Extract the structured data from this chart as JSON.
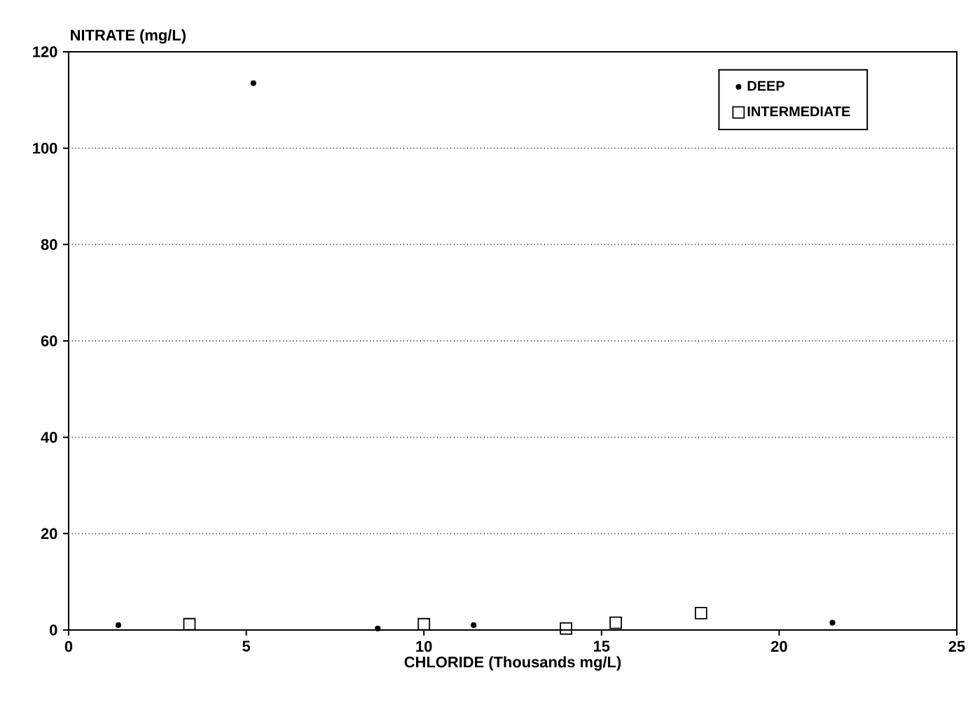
{
  "chart_data": {
    "type": "scatter",
    "xlabel": "CHLORIDE (Thousands mg/L)",
    "ylabel": "NITRATE (mg/L)",
    "xlim": [
      0,
      25
    ],
    "xticks": [
      0,
      5,
      10,
      15,
      20,
      25
    ],
    "ylim": [
      0,
      120
    ],
    "yticks": [
      0,
      20,
      40,
      60,
      80,
      100,
      120
    ],
    "grid": "y",
    "legend": "top right",
    "series": [
      {
        "name": "DEEP",
        "color": "#000000",
        "marker": "circle",
        "x": [
          1.4,
          5.2,
          8.7,
          11.4,
          21.5
        ],
        "values": [
          1,
          113.5,
          0.3,
          1,
          1.5
        ]
      },
      {
        "name": "INTERMEDIATE",
        "color": "#000000",
        "marker": "square",
        "x": [
          3.4,
          10.0,
          14.0,
          15.4,
          17.8
        ],
        "values": [
          1.2,
          1.2,
          0.3,
          1.5,
          3.5
        ]
      }
    ]
  }
}
